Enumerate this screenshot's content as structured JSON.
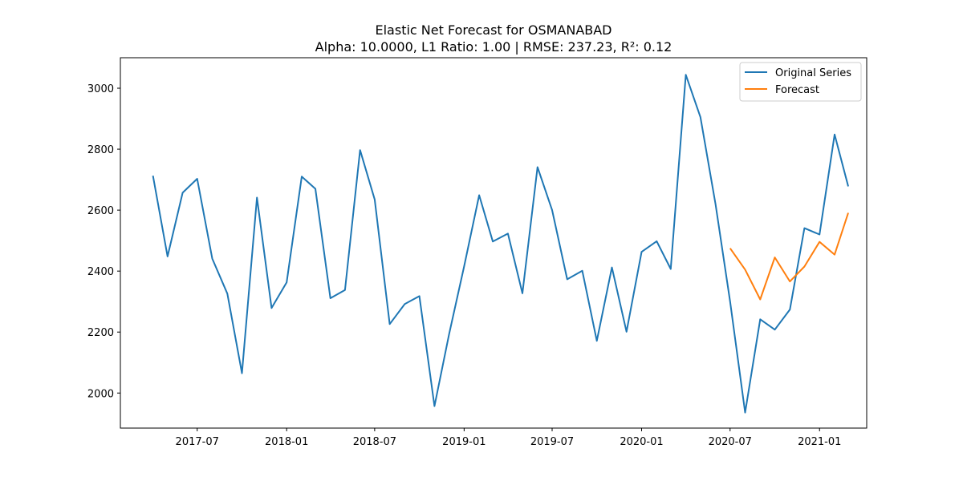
{
  "chart_data": {
    "type": "line",
    "title": "Elastic Net Forecast for OSMANABAD",
    "subtitle": "Alpha: 10.0000, L1 Ratio: 1.00 | RMSE: 237.23, R²: 0.12",
    "xlabel": "",
    "ylabel": "",
    "xlim": [
      "2017-01-24",
      "2021-04-08"
    ],
    "ylim": [
      1885,
      3100
    ],
    "x_ticks": [
      "2017-07-01",
      "2018-01-01",
      "2018-07-01",
      "2019-01-01",
      "2019-07-01",
      "2020-01-01",
      "2020-07-01",
      "2021-01-01"
    ],
    "x_tick_labels": [
      "2017-07",
      "2018-01",
      "2018-07",
      "2019-01",
      "2019-07",
      "2020-01",
      "2020-07",
      "2021-01"
    ],
    "y_ticks": [
      2000,
      2200,
      2400,
      2600,
      2800,
      3000
    ],
    "y_tick_labels": [
      "2000",
      "2200",
      "2400",
      "2600",
      "2800",
      "3000"
    ],
    "grid": false,
    "legend_position": "top-right",
    "series": [
      {
        "name": "Original Series",
        "color": "#1f77b4",
        "x": [
          "2017-04-01",
          "2017-05-01",
          "2017-06-01",
          "2017-07-01",
          "2017-08-01",
          "2017-09-01",
          "2017-10-01",
          "2017-11-01",
          "2017-12-01",
          "2018-01-01",
          "2018-02-01",
          "2018-03-01",
          "2018-04-01",
          "2018-05-01",
          "2018-06-01",
          "2018-07-01",
          "2018-08-01",
          "2018-09-01",
          "2018-10-01",
          "2018-11-01",
          "2018-12-01",
          "2019-01-01",
          "2019-02-01",
          "2019-03-01",
          "2019-04-01",
          "2019-05-01",
          "2019-06-01",
          "2019-07-01",
          "2019-08-01",
          "2019-09-01",
          "2019-10-01",
          "2019-11-01",
          "2019-12-01",
          "2020-01-01",
          "2020-02-01",
          "2020-03-01",
          "2020-04-01",
          "2020-05-01",
          "2020-06-01",
          "2020-07-01",
          "2020-08-01",
          "2020-09-01",
          "2020-10-01",
          "2020-11-01",
          "2020-12-01",
          "2021-01-01",
          "2021-02-01",
          "2021-03-01"
        ],
        "values": [
          2713,
          2448,
          2657,
          2703,
          2441,
          2326,
          2065,
          2641,
          2279,
          2363,
          2710,
          2670,
          2311,
          2338,
          2797,
          2635,
          2226,
          2292,
          2318,
          1957,
          2193,
          2415,
          2649,
          2497,
          2523,
          2327,
          2741,
          2600,
          2373,
          2401,
          2171,
          2412,
          2201,
          2463,
          2498,
          2407,
          3044,
          2905,
          2620,
          2300,
          1936,
          2242,
          2208,
          2274,
          2541,
          2520,
          2848,
          2678
        ]
      },
      {
        "name": "Forecast",
        "color": "#ff7f0e",
        "x": [
          "2020-07-01",
          "2020-08-01",
          "2020-09-01",
          "2020-10-01",
          "2020-11-01",
          "2020-12-01",
          "2021-01-01",
          "2021-02-01",
          "2021-03-01"
        ],
        "values": [
          2475,
          2405,
          2307,
          2445,
          2366,
          2415,
          2496,
          2454,
          2591
        ]
      }
    ]
  }
}
